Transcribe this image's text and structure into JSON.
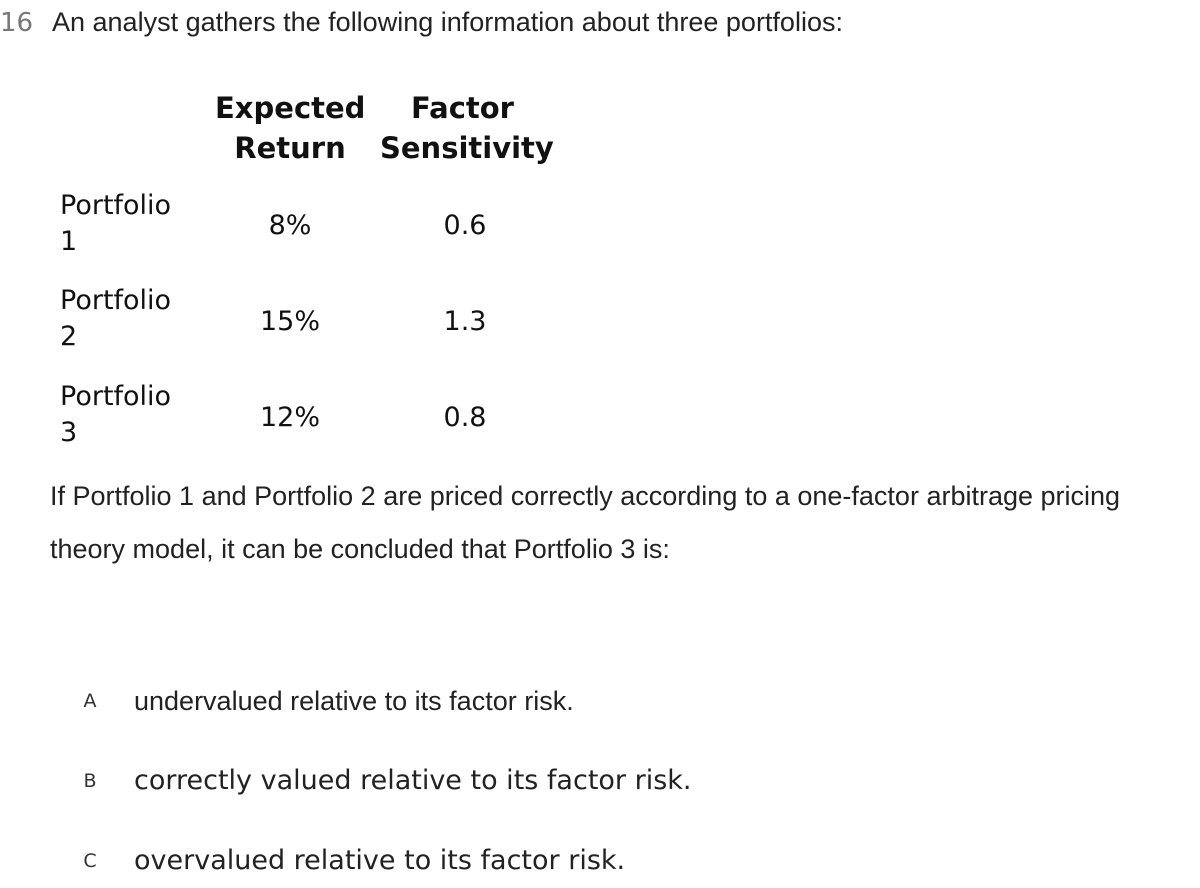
{
  "question_number": "16",
  "stem": "An analyst gathers the following information about three portfolios:",
  "table": {
    "headers": {
      "expected_return": [
        "Expected",
        "Return"
      ],
      "factor_sensitivity": [
        "Factor",
        "Sensitivity"
      ]
    },
    "rows": [
      {
        "label": [
          "Portfolio",
          "1"
        ],
        "expected_return": "8%",
        "factor_sensitivity": "0.6"
      },
      {
        "label": [
          "Portfolio",
          "2"
        ],
        "expected_return": "15%",
        "factor_sensitivity": "1.3"
      },
      {
        "label": [
          "Portfolio",
          "3"
        ],
        "expected_return": "12%",
        "factor_sensitivity": "0.8"
      }
    ]
  },
  "question_text": [
    "If Portfolio 1 and Portfolio 2 are priced correctly according to a one-factor arbitrage pricing",
    "theory model, it can be concluded that Portfolio 3 is:"
  ],
  "options": [
    {
      "letter": "A",
      "text": "undervalued relative to its factor risk."
    },
    {
      "letter": "B",
      "text": "correctly valued relative to its factor risk."
    },
    {
      "letter": "C",
      "text": "overvalued relative to its factor risk."
    }
  ]
}
